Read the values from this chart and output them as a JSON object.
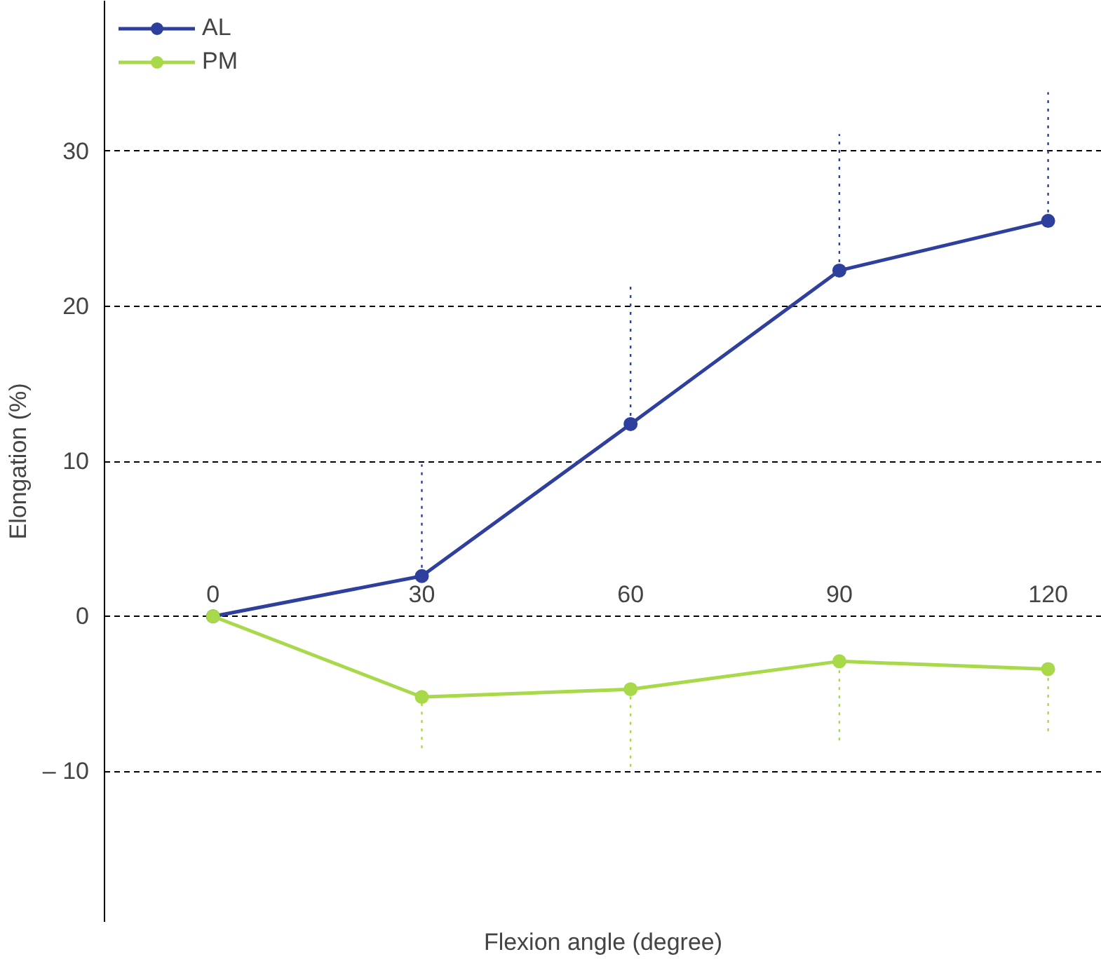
{
  "chart_data": {
    "type": "line",
    "xlabel": "Flexion angle (degree)",
    "ylabel": "Elongation (%)",
    "x": [
      0,
      30,
      60,
      90,
      120
    ],
    "series": [
      {
        "name": "AL",
        "color": "#2e3f9e",
        "values": [
          0,
          2.6,
          12.4,
          22.3,
          25.5
        ],
        "errors": [
          null,
          [
            2.6,
            9.8
          ],
          [
            12.4,
            21.3
          ],
          [
            22.3,
            31.1
          ],
          [
            25.5,
            33.8
          ]
        ]
      },
      {
        "name": "PM",
        "color": "#a8d94a",
        "values": [
          0,
          -5.2,
          -4.7,
          -2.9,
          -3.4
        ],
        "errors": [
          null,
          [
            -8.5,
            -5.2
          ],
          [
            -9.7,
            -4.7
          ],
          [
            -8.0,
            -2.9
          ],
          [
            -7.4,
            -3.4
          ]
        ]
      }
    ],
    "xlim": [
      -15.6,
      127.7
    ],
    "ylim": [
      -19.7,
      39.7
    ],
    "xticks": [
      0,
      30,
      60,
      90,
      120
    ],
    "yticks": [
      {
        "value": -10,
        "label": "– 10"
      },
      0,
      10,
      20,
      30
    ],
    "grid": "y",
    "legend": "top left",
    "marker": "circle",
    "line_style": "solid"
  }
}
